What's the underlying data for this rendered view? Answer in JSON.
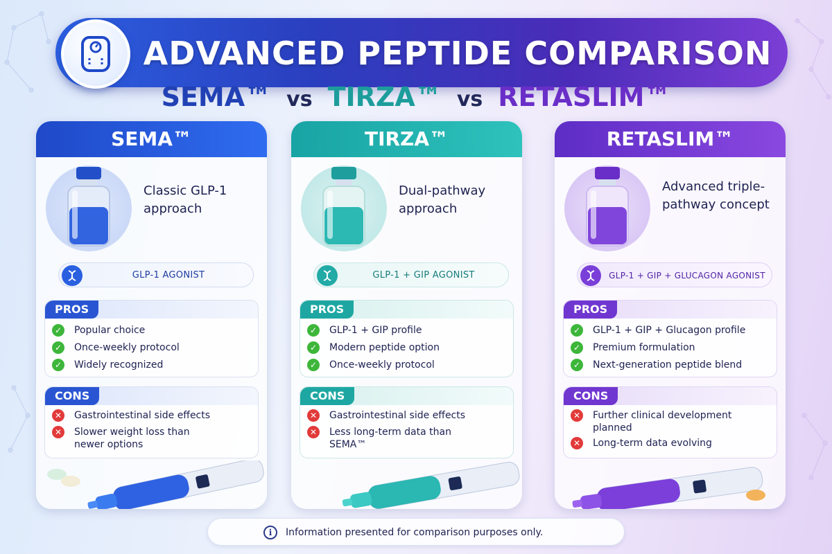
{
  "title": "ADVANCED PEPTIDE COMPARISON",
  "subtitle": {
    "first": "SEMA™",
    "vs1": "vs",
    "second": "TIRZA™",
    "vs2": "vs",
    "third": "RETASLIM™"
  },
  "banner_icon": "scale-icon",
  "columns": [
    {
      "name": "SEMA™",
      "description": "Classic GLP-1 approach",
      "type": "GLP-1 AGONIST",
      "pros_label": "PROS",
      "pros": [
        "Popular choice",
        "Once-weekly protocol",
        "Widely recognized"
      ],
      "cons_label": "CONS",
      "cons": [
        "Gastrointestinal side effects",
        "Slower weight loss than newer options"
      ],
      "accent": "#2a55d2"
    },
    {
      "name": "TIRZA™",
      "description": "Dual-pathway approach",
      "type": "GLP-1 + GIP AGONIST",
      "pros_label": "PROS",
      "pros": [
        "GLP-1 + GIP profile",
        "Modern peptide option",
        "Once-weekly protocol"
      ],
      "cons_label": "CONS",
      "cons": [
        "Gastrointestinal side effects",
        "Less long-term data than SEMA™"
      ],
      "accent": "#1ea7a2"
    },
    {
      "name": "RETASLIM™",
      "description": "Advanced triple-pathway concept",
      "type": "GLP-1 + GIP + GLUCAGON AGONIST",
      "pros_label": "PROS",
      "pros": [
        "GLP-1 + GIP + Glucagon profile",
        "Premium formulation",
        "Next-generation peptide blend"
      ],
      "cons_label": "CONS",
      "cons": [
        "Further clinical development planned",
        "Long-term data evolving"
      ],
      "accent": "#7036d0"
    }
  ],
  "footer": {
    "icon": "info-icon",
    "text": "Information presented for comparison purposes only."
  }
}
